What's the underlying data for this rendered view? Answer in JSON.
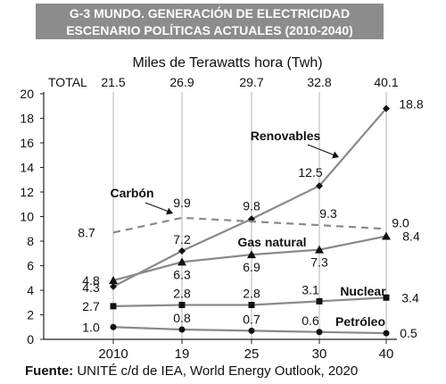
{
  "chart_data": {
    "type": "line",
    "title_line1": "G-3 MUNDO. GENERACIÓN DE ELECTRICIDAD",
    "title_line2": "ESCENARIO POLÍTICAS ACTUALES (2010-2040)",
    "subtitle": "Miles de Terawatts hora (Twh)",
    "totals_label": "TOTAL",
    "totals": [
      "21.5",
      "26.9",
      "29.7",
      "32.8",
      "40.1"
    ],
    "x_tick_labels": [
      "2010",
      "19",
      "25",
      "30",
      "40"
    ],
    "x": [
      2010,
      2019,
      2025,
      2030,
      2040
    ],
    "ylim": [
      0,
      20
    ],
    "y_ticks": [
      0,
      2,
      4,
      6,
      8,
      10,
      12,
      14,
      16,
      18,
      20
    ],
    "grid": "vertical",
    "series": [
      {
        "name": "Renovables",
        "values": [
          4.3,
          7.2,
          9.8,
          12.5,
          18.8
        ],
        "labels": [
          "4.3",
          "7.2",
          "9.8",
          "12.5",
          "18.8"
        ],
        "marker": "diamond",
        "color": "#8a8a8a",
        "dashed": false
      },
      {
        "name": "Carbón",
        "values": [
          8.7,
          9.9,
          9.6,
          9.3,
          9.0
        ],
        "labels": [
          "8.7",
          "9.9",
          "",
          "9.3",
          "9.0"
        ],
        "marker": "none",
        "color": "#8a8a8a",
        "dashed": true
      },
      {
        "name": "Gas natural",
        "values": [
          4.8,
          6.3,
          6.9,
          7.3,
          8.4
        ],
        "labels": [
          "4.8",
          "6.3",
          "6.9",
          "7.3",
          "8.4"
        ],
        "marker": "triangle",
        "color": "#8a8a8a",
        "dashed": false
      },
      {
        "name": "Nuclear",
        "values": [
          2.7,
          2.8,
          2.8,
          3.1,
          3.4
        ],
        "labels": [
          "2.7",
          "2.8",
          "2.8",
          "3.1",
          "3.4"
        ],
        "marker": "square",
        "color": "#8a8a8a",
        "dashed": false
      },
      {
        "name": "Petróleo",
        "values": [
          1.0,
          0.8,
          0.7,
          0.6,
          0.5
        ],
        "labels": [
          "1.0",
          "0.8",
          "0.7",
          "0.6",
          "0.5"
        ],
        "marker": "circle",
        "color": "#8a8a8a",
        "dashed": false
      }
    ],
    "source_bold": "Fuente:",
    "source_text": " UNITÉ c/d de IEA, World Energy Outlook, 2020"
  }
}
